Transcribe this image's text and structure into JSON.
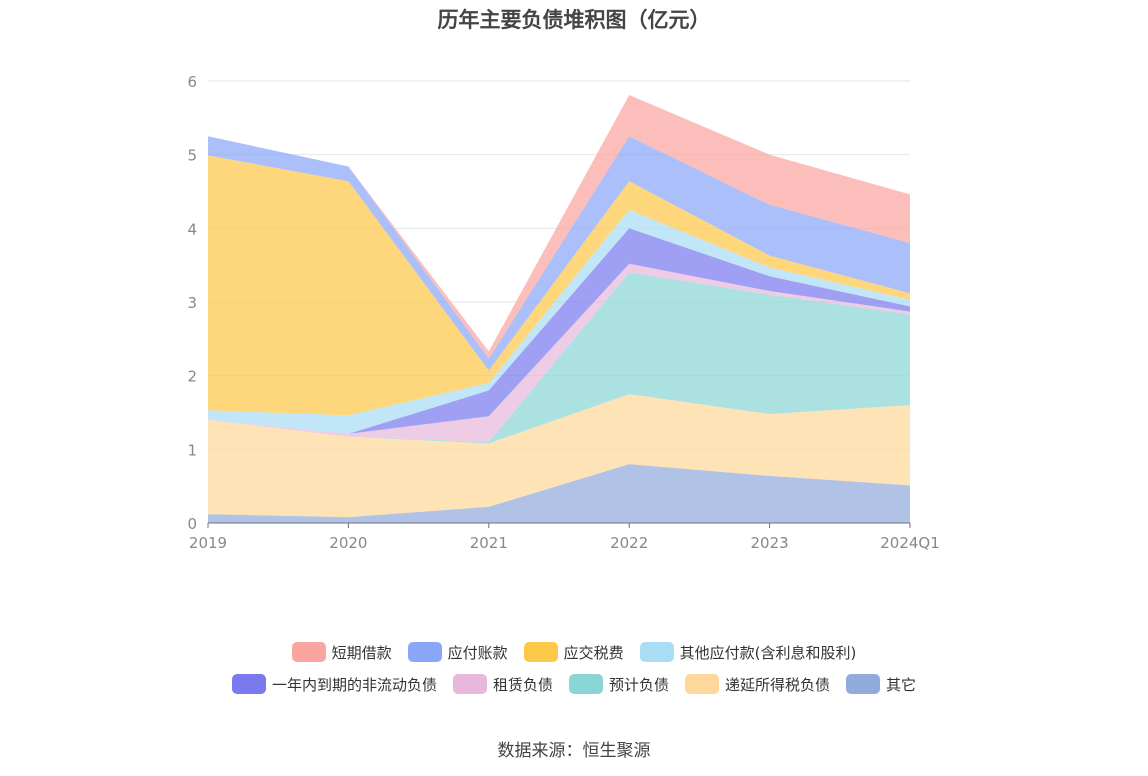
{
  "chart_data": {
    "type": "area",
    "stacked": true,
    "title": "历年主要负债堆积图（亿元）",
    "x": [
      "2019",
      "2020",
      "2021",
      "2022",
      "2023",
      "2024Q1"
    ],
    "ylim": [
      0,
      6
    ],
    "yticks": [
      "0",
      "1",
      "2",
      "3",
      "4",
      "5",
      "6"
    ],
    "grid": true,
    "legend_position": "bottom",
    "series": [
      {
        "name": "其它",
        "color": "#91acdc",
        "values": [
          0.12,
          0.08,
          0.22,
          0.8,
          0.64,
          0.51
        ]
      },
      {
        "name": "递延所得税负债",
        "color": "#fdd89a",
        "values": [
          1.28,
          1.09,
          0.86,
          0.95,
          0.84,
          1.09
        ]
      },
      {
        "name": "预计负债",
        "color": "#8ad6d6",
        "values": [
          0.0,
          0.0,
          0.02,
          1.65,
          1.62,
          1.23
        ]
      },
      {
        "name": "租赁负债",
        "color": "#e8b8dc",
        "values": [
          0.0,
          0.04,
          0.35,
          0.12,
          0.05,
          0.04
        ]
      },
      {
        "name": "一年内到期的非流动负债",
        "color": "#7a7aee",
        "values": [
          0.0,
          0.0,
          0.35,
          0.48,
          0.2,
          0.07
        ]
      },
      {
        "name": "其他应付款(含利息和股利)",
        "color": "#a9ddf5",
        "values": [
          0.13,
          0.25,
          0.1,
          0.25,
          0.12,
          0.09
        ]
      },
      {
        "name": "应交税费",
        "color": "#fdc84a",
        "values": [
          3.46,
          3.18,
          0.17,
          0.39,
          0.16,
          0.09
        ]
      },
      {
        "name": "应付账款",
        "color": "#8aa6f8",
        "values": [
          0.26,
          0.2,
          0.16,
          0.61,
          0.69,
          0.68
        ]
      },
      {
        "name": "短期借款",
        "color": "#fba5a0",
        "values": [
          0.0,
          0.0,
          0.1,
          0.56,
          0.68,
          0.66
        ]
      }
    ],
    "legend_rows": [
      [
        {
          "name": "短期借款",
          "color": "#fba5a0"
        },
        {
          "name": "应付账款",
          "color": "#8aa6f8"
        },
        {
          "name": "应交税费",
          "color": "#fdc84a"
        },
        {
          "name": "其他应付款(含利息和股利)",
          "color": "#a9ddf5"
        }
      ],
      [
        {
          "name": "一年内到期的非流动负债",
          "color": "#7a7aee"
        },
        {
          "name": "租赁负债",
          "color": "#e8b8dc"
        },
        {
          "name": "预计负债",
          "color": "#8ad6d6"
        },
        {
          "name": "递延所得税负债",
          "color": "#fdd89a"
        },
        {
          "name": "其它",
          "color": "#91acdc"
        }
      ]
    ]
  },
  "source": "数据来源：恒生聚源"
}
